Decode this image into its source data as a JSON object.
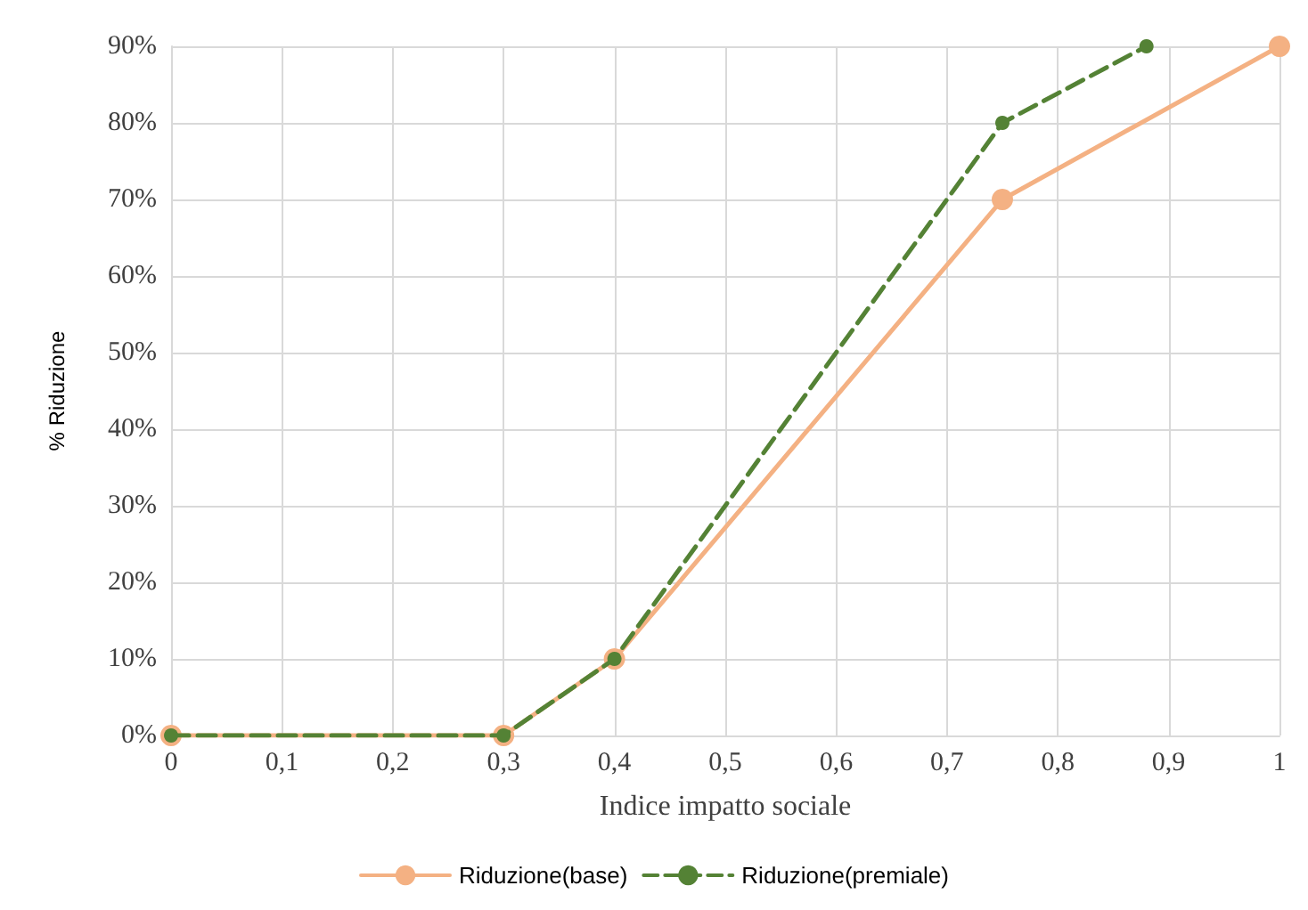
{
  "chart_data": {
    "type": "line",
    "xlabel": "Indice impatto sociale",
    "ylabel": "% Riduzione",
    "xlim": [
      0,
      1
    ],
    "ylim": [
      0,
      90
    ],
    "xticks": [
      0,
      {
        "value": 0.1,
        "label": "0,1"
      },
      {
        "value": 0.2,
        "label": "0,2"
      },
      {
        "value": 0.3,
        "label": "0,3"
      },
      {
        "value": 0.4,
        "label": "0,4"
      },
      {
        "value": 0.5,
        "label": "0,5"
      },
      {
        "value": 0.6,
        "label": "0,6"
      },
      {
        "value": 0.7,
        "label": "0,7"
      },
      {
        "value": 0.8,
        "label": "0,8"
      },
      {
        "value": 0.9,
        "label": "0,9"
      },
      1
    ],
    "yticks": [
      {
        "value": 0,
        "label": "0%"
      },
      {
        "value": 10,
        "label": "10%"
      },
      {
        "value": 20,
        "label": "20%"
      },
      {
        "value": 30,
        "label": "30%"
      },
      {
        "value": 40,
        "label": "40%"
      },
      {
        "value": 50,
        "label": "50%"
      },
      {
        "value": 60,
        "label": "60%"
      },
      {
        "value": 70,
        "label": "70%"
      },
      {
        "value": 80,
        "label": "80%"
      },
      {
        "value": 90,
        "label": "90%"
      }
    ],
    "grid": true,
    "legend": "bottom",
    "marker": "circle",
    "series": [
      {
        "name": "Riduzione(base)",
        "color": "#f4b183",
        "line_style": "solid",
        "x": [
          0,
          0.3,
          0.4,
          0.75,
          1
        ],
        "values": [
          0,
          0,
          10,
          70,
          90
        ]
      },
      {
        "name": "Riduzione(premiale)",
        "color": "#548235",
        "line_style": "dashed",
        "x": [
          0,
          0.3,
          0.4,
          0.75,
          0.88
        ],
        "values": [
          0,
          0,
          10,
          80,
          90
        ]
      }
    ]
  }
}
